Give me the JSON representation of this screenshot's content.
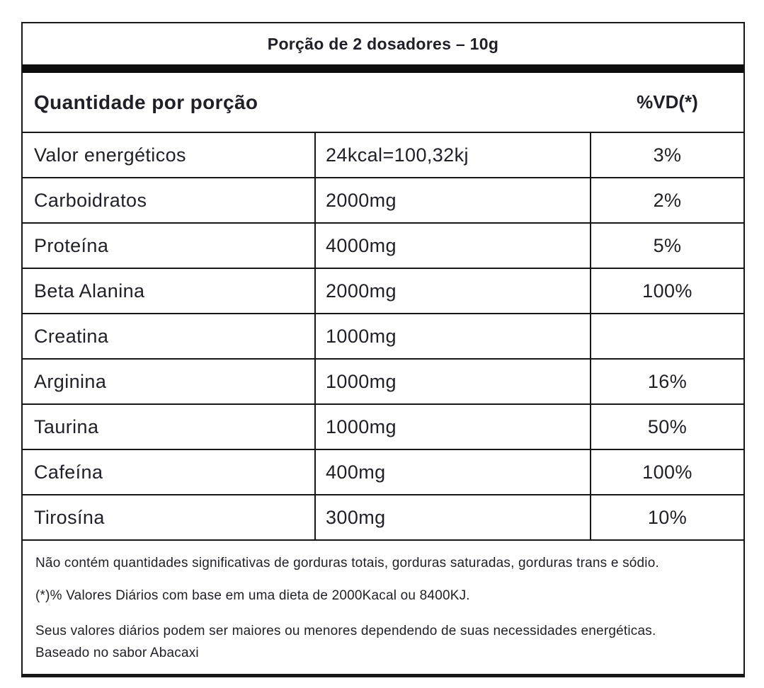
{
  "header": {
    "portion_title": "Porção de 2 dosadores – 10g",
    "quantity_label": "Quantidade por porção",
    "vd_label": "%VD(*)"
  },
  "rows": [
    {
      "name": "Valor energéticos",
      "value": "24kcal=100,32kj",
      "vd": "3%"
    },
    {
      "name": "Carboidratos",
      "value": "2000mg",
      "vd": "2%"
    },
    {
      "name": "Proteína",
      "value": "4000mg",
      "vd": "5%"
    },
    {
      "name": "Beta Alanina",
      "value": "2000mg",
      "vd": "100%"
    },
    {
      "name": "Creatina",
      "value": "1000mg",
      "vd": ""
    },
    {
      "name": "Arginina",
      "value": "1000mg",
      "vd": "16%"
    },
    {
      "name": "Taurina",
      "value": "1000mg",
      "vd": "50%"
    },
    {
      "name": "Cafeína",
      "value": "400mg",
      "vd": "100%"
    },
    {
      "name": "Tirosína",
      "value": "300mg",
      "vd": "10%"
    }
  ],
  "footnotes": {
    "no_significant_fats": "Não contém quantidades significativas de gorduras totais, gorduras saturadas, gorduras trans e sódio.",
    "daily_values_basis": "(*)% Valores Diários com base em uma dieta de 2000Kacal ou 8400KJ.",
    "daily_values_variation": "Seus valores diários podem ser maiores ou menores dependendo de suas necessidades energéticas.",
    "flavor_basis": "Baseado no sabor Abacaxi"
  },
  "colors": {
    "text": "#1f1f28",
    "border": "#161616",
    "bar": "#0d0d0d",
    "background": "#ffffff"
  }
}
